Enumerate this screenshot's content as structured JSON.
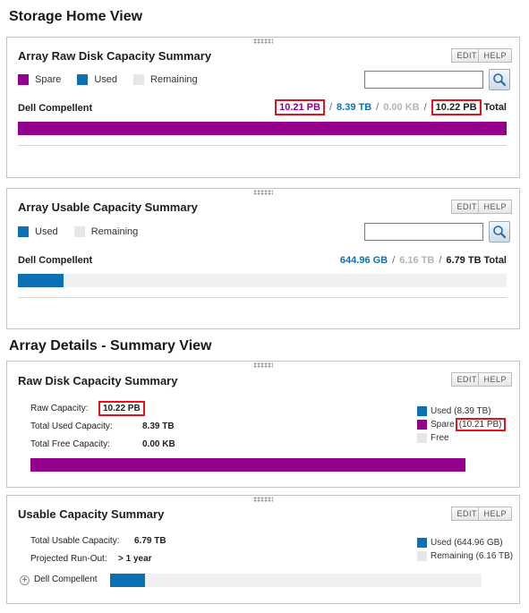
{
  "headers": {
    "storage_home": "Storage Home View",
    "array_details": "Array Details - Summary View"
  },
  "buttons": {
    "edit": "EDIT",
    "help": "HELP"
  },
  "colors": {
    "spare": "#92008c",
    "used": "#0b71b4",
    "remaining": "#e6e6e6",
    "highlight_box": "#e0141e"
  },
  "raw_panel": {
    "title": "Array Raw Disk Capacity Summary",
    "legend": [
      "Spare",
      "Used",
      "Remaining"
    ],
    "search_value": "",
    "row_label": "Dell Compellent",
    "spare_value": "10.21 PB",
    "used_value": "8.39 TB",
    "remaining_value": "0.00 KB",
    "total_value": "10.22 PB",
    "total_label": "Total",
    "spare_fraction": 1.0
  },
  "usable_panel": {
    "title": "Array Usable Capacity Summary",
    "legend": [
      "Used",
      "Remaining"
    ],
    "search_value": "",
    "row_label": "Dell Compellent",
    "used_value": "644.96 GB",
    "remaining_value": "6.16 TB",
    "total_value": "6.79 TB",
    "total_label": "Total",
    "used_fraction": 0.093
  },
  "raw_detail_panel": {
    "title": "Raw Disk Capacity Summary",
    "raw_capacity_label": "Raw Capacity:",
    "raw_capacity_value": "10.22 PB",
    "total_used_label": "Total Used Capacity:",
    "total_used_value": "8.39 TB",
    "total_free_label": "Total Free Capacity:",
    "total_free_value": "0.00 KB",
    "legend_used": "Used (8.39 TB)",
    "legend_spare": "Spare",
    "legend_spare_value": "(10.21 PB)",
    "legend_free": "Free",
    "spare_fraction": 1.0
  },
  "usable_detail_panel": {
    "title": "Usable Capacity Summary",
    "total_usable_label": "Total Usable Capacity:",
    "total_usable_value": "6.79 TB",
    "runout_label": "Projected Run-Out:",
    "runout_value": "> 1 year",
    "legend_used": "Used (644.96 GB)",
    "legend_remaining": "Remaining (6.16 TB)",
    "expand_label": "+",
    "row_label": "Dell Compellent",
    "used_fraction": 0.093
  }
}
